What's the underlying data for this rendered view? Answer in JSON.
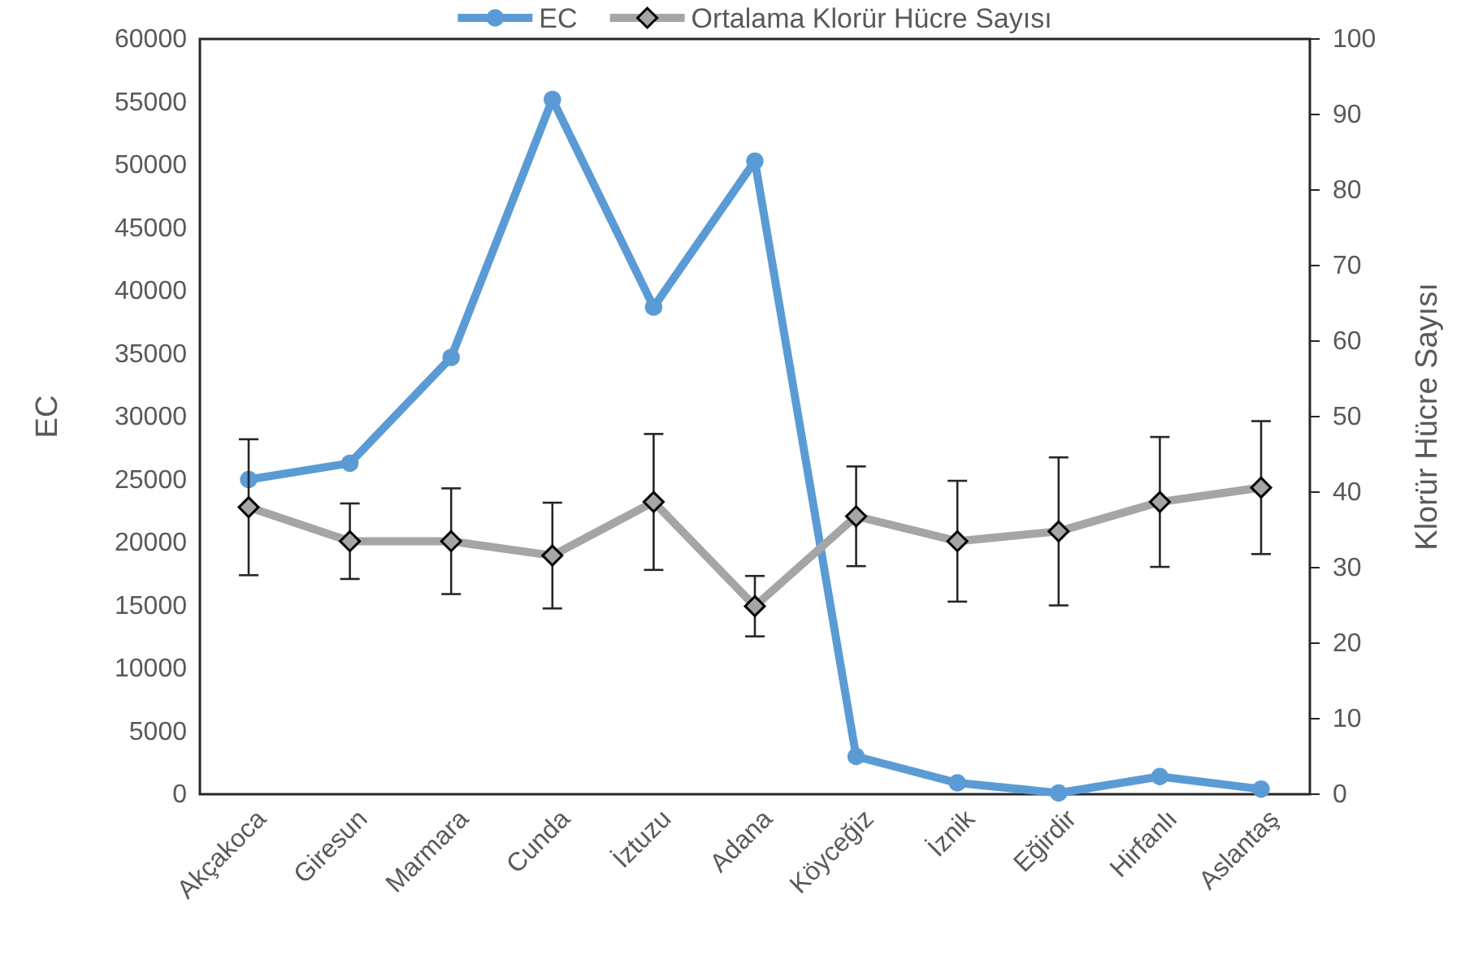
{
  "chart_data": {
    "type": "line",
    "categories": [
      "Akçakoca",
      "Giresun",
      "Marmara",
      "Cunda",
      "İztuzu",
      "Adana",
      "Köyceğiz",
      "İznik",
      "Eğirdir",
      "Hirfanlı",
      "Aslantaş"
    ],
    "ylabel": "EC",
    "y2label": "Klorür Hücre Sayısı",
    "ylim": [
      0,
      60000
    ],
    "yticks": [
      0,
      5000,
      10000,
      15000,
      20000,
      25000,
      30000,
      35000,
      40000,
      45000,
      50000,
      55000,
      60000
    ],
    "y2lim": [
      0,
      100
    ],
    "y2ticks": [
      0,
      10,
      20,
      30,
      40,
      50,
      60,
      70,
      80,
      90,
      100
    ],
    "legend": "top",
    "grid": false,
    "series": [
      {
        "name": "EC",
        "color": "#5b9bd5",
        "marker": "circle",
        "values": [
          25000,
          26300,
          34700,
          55200,
          38700,
          50300,
          3000,
          900,
          100,
          1400,
          400
        ]
      },
      {
        "name": "Ortalama Klorür Hücre Sayısı",
        "color": "#a5a5a5",
        "marker": "diamond",
        "axis": "y2",
        "values": [
          38,
          33.5,
          33.5,
          31.6,
          38.7,
          24.9,
          36.8,
          33.5,
          34.8,
          38.7,
          40.6
        ],
        "errors": [
          9,
          5,
          7,
          7,
          9,
          4,
          6.6,
          8,
          9.8,
          8.6,
          8.8
        ]
      }
    ]
  }
}
